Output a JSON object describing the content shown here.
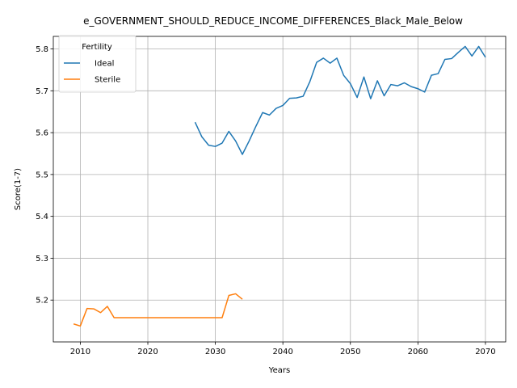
{
  "chart_data": {
    "type": "line",
    "title": "e_GOVERNMENT_SHOULD_REDUCE_INCOME_DIFFERENCES_Black_Male_Below",
    "xlabel": "Years",
    "ylabel": "Score(1-7)",
    "xlim": [
      2006,
      2073
    ],
    "ylim": [
      5.1,
      5.83
    ],
    "x_ticks": [
      2010,
      2020,
      2030,
      2040,
      2050,
      2060,
      2070
    ],
    "y_ticks": [
      5.2,
      5.3,
      5.4,
      5.5,
      5.6,
      5.7,
      5.8
    ],
    "grid": true,
    "legend": {
      "title": "Fertility",
      "placement": "top-left"
    },
    "series": [
      {
        "name": "Ideal",
        "color": "#1f77b4",
        "points": [
          [
            2027,
            5.625
          ],
          [
            2028,
            5.59
          ],
          [
            2029,
            5.57
          ],
          [
            2030,
            5.567
          ],
          [
            2031,
            5.575
          ],
          [
            2032,
            5.603
          ],
          [
            2033,
            5.58
          ],
          [
            2034,
            5.548
          ],
          [
            2035,
            5.58
          ],
          [
            2036,
            5.615
          ],
          [
            2037,
            5.648
          ],
          [
            2038,
            5.642
          ],
          [
            2039,
            5.658
          ],
          [
            2040,
            5.665
          ],
          [
            2041,
            5.682
          ],
          [
            2042,
            5.683
          ],
          [
            2043,
            5.687
          ],
          [
            2044,
            5.722
          ],
          [
            2045,
            5.768
          ],
          [
            2046,
            5.778
          ],
          [
            2047,
            5.766
          ],
          [
            2048,
            5.778
          ],
          [
            2049,
            5.737
          ],
          [
            2050,
            5.717
          ],
          [
            2051,
            5.684
          ],
          [
            2052,
            5.733
          ],
          [
            2053,
            5.681
          ],
          [
            2054,
            5.724
          ],
          [
            2055,
            5.688
          ],
          [
            2056,
            5.715
          ],
          [
            2057,
            5.712
          ],
          [
            2058,
            5.719
          ],
          [
            2059,
            5.71
          ],
          [
            2060,
            5.705
          ],
          [
            2061,
            5.697
          ],
          [
            2062,
            5.737
          ],
          [
            2063,
            5.741
          ],
          [
            2064,
            5.775
          ],
          [
            2065,
            5.777
          ],
          [
            2066,
            5.792
          ],
          [
            2067,
            5.806
          ],
          [
            2068,
            5.783
          ],
          [
            2069,
            5.806
          ],
          [
            2070,
            5.78
          ]
        ]
      },
      {
        "name": "Sterile",
        "color": "#ff7f0e",
        "points": [
          [
            2009,
            5.143
          ],
          [
            2010,
            5.138
          ],
          [
            2011,
            5.18
          ],
          [
            2012,
            5.179
          ],
          [
            2013,
            5.17
          ],
          [
            2014,
            5.185
          ],
          [
            2015,
            5.158
          ],
          [
            2016,
            5.158
          ],
          [
            2017,
            5.158
          ],
          [
            2018,
            5.158
          ],
          [
            2019,
            5.158
          ],
          [
            2020,
            5.158
          ],
          [
            2021,
            5.158
          ],
          [
            2022,
            5.158
          ],
          [
            2023,
            5.158
          ],
          [
            2024,
            5.158
          ],
          [
            2025,
            5.158
          ],
          [
            2026,
            5.158
          ],
          [
            2027,
            5.158
          ],
          [
            2028,
            5.158
          ],
          [
            2029,
            5.158
          ],
          [
            2030,
            5.158
          ],
          [
            2031,
            5.158
          ],
          [
            2032,
            5.211
          ],
          [
            2033,
            5.215
          ],
          [
            2034,
            5.202
          ]
        ]
      }
    ]
  }
}
